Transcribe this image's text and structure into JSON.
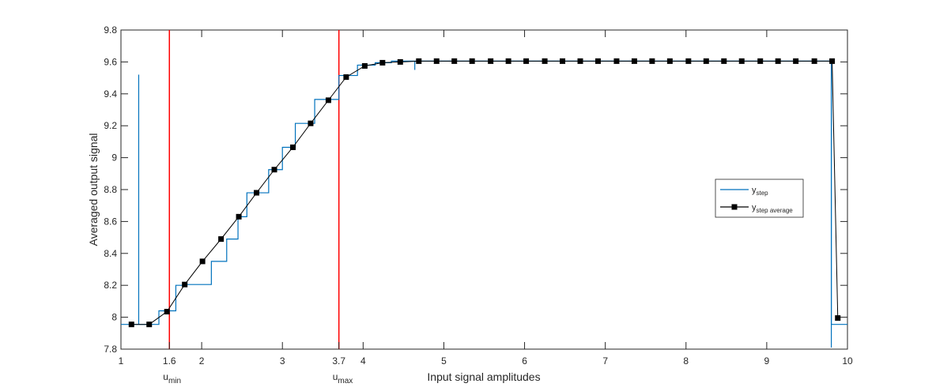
{
  "chart_data": {
    "type": "line",
    "xlabel": "Input signal amplitudes",
    "ylabel": "Averaged output signal",
    "xlim": [
      1,
      10
    ],
    "ylim": [
      7.8,
      9.8
    ],
    "x_ticks": [
      1,
      2,
      3,
      4,
      5,
      6,
      7,
      8,
      9,
      10
    ],
    "y_ticks": [
      7.8,
      8,
      8.2,
      8.4,
      8.6,
      8.8,
      9,
      9.2,
      9.4,
      9.6,
      9.8
    ],
    "grid": false,
    "legend_position": "right",
    "vertical_markers": [
      {
        "x": 1.6,
        "tick_label": "1.6",
        "label_main": "u",
        "label_sub": "min",
        "color": "#ff0000"
      },
      {
        "x": 3.7,
        "tick_label": "3.7",
        "label_main": "u",
        "label_sub": "max",
        "color": "#ff0000"
      }
    ],
    "series": [
      {
        "legend_main": "y",
        "legend_sub": "step",
        "color": "#0072bd",
        "style": "step",
        "levels": [
          {
            "x_start": 1.0,
            "x_end": 1.33,
            "y": 7.955
          },
          {
            "x_start": 1.33,
            "x_end": 1.47,
            "y": 7.955
          },
          {
            "x_start": 1.47,
            "x_end": 1.68,
            "y": 8.04
          },
          {
            "x_start": 1.68,
            "x_end": 1.8,
            "y": 8.2
          },
          {
            "x_start": 1.8,
            "x_end": 2.12,
            "y": 8.205
          },
          {
            "x_start": 2.12,
            "x_end": 2.31,
            "y": 8.35
          },
          {
            "x_start": 2.31,
            "x_end": 2.45,
            "y": 8.49
          },
          {
            "x_start": 2.45,
            "x_end": 2.56,
            "y": 8.63
          },
          {
            "x_start": 2.56,
            "x_end": 2.83,
            "y": 8.78
          },
          {
            "x_start": 2.83,
            "x_end": 3.0,
            "y": 8.925
          },
          {
            "x_start": 3.0,
            "x_end": 3.16,
            "y": 9.065
          },
          {
            "x_start": 3.16,
            "x_end": 3.4,
            "y": 9.215
          },
          {
            "x_start": 3.4,
            "x_end": 3.7,
            "y": 9.365
          },
          {
            "x_start": 3.7,
            "x_end": 3.93,
            "y": 9.515
          },
          {
            "x_start": 3.93,
            "x_end": 4.15,
            "y": 9.58
          },
          {
            "x_start": 4.15,
            "x_end": 4.35,
            "y": 9.595
          },
          {
            "x_start": 4.35,
            "x_end": 9.8,
            "y": 9.605
          },
          {
            "x_start": 9.8,
            "x_end": 10.0,
            "y": 7.955
          }
        ],
        "spikes": [
          {
            "x": 1.22,
            "from": 7.955,
            "to": 9.52
          },
          {
            "x": 4.64,
            "from": 9.605,
            "to": 9.55
          },
          {
            "x": 9.8,
            "from": 9.605,
            "to": 7.81
          }
        ]
      },
      {
        "legend_main": "y",
        "legend_sub": "step average",
        "color": "#000000",
        "marker": "square",
        "x": [
          1.13,
          1.35,
          1.57,
          1.79,
          2.01,
          2.24,
          2.46,
          2.68,
          2.9,
          3.13,
          3.35,
          3.57,
          3.79,
          4.02,
          4.24,
          4.46,
          4.69,
          4.91,
          5.13,
          5.35,
          5.58,
          5.8,
          6.02,
          6.25,
          6.47,
          6.69,
          6.91,
          7.14,
          7.36,
          7.58,
          7.8,
          8.03,
          8.25,
          8.47,
          8.69,
          8.92,
          9.14,
          9.36,
          9.59,
          9.81,
          9.88
        ],
        "y": [
          7.955,
          7.955,
          8.035,
          8.205,
          8.35,
          8.49,
          8.63,
          8.78,
          8.925,
          9.065,
          9.215,
          9.36,
          9.505,
          9.575,
          9.595,
          9.6,
          9.605,
          9.605,
          9.605,
          9.605,
          9.605,
          9.605,
          9.605,
          9.605,
          9.605,
          9.605,
          9.605,
          9.605,
          9.605,
          9.605,
          9.605,
          9.605,
          9.605,
          9.605,
          9.605,
          9.605,
          9.605,
          9.605,
          9.605,
          9.605,
          7.995
        ]
      }
    ]
  }
}
